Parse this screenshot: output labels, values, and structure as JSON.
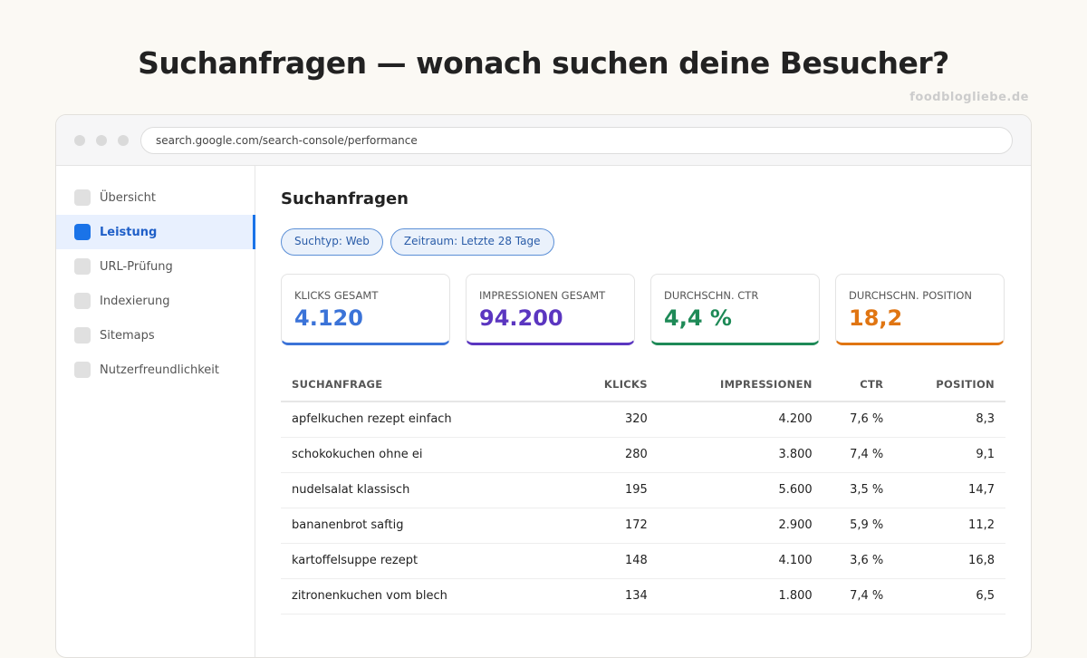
{
  "headline": "Suchanfragen — wonach suchen deine Besucher?",
  "url": "search.google.com/search-console/performance",
  "sidebar": {
    "items": [
      {
        "label": "Übersicht"
      },
      {
        "label": "Leistung"
      },
      {
        "label": "URL-Prüfung"
      },
      {
        "label": "Indexierung"
      },
      {
        "label": "Sitemaps"
      },
      {
        "label": "Nutzerfreundlichkeit"
      }
    ]
  },
  "main": {
    "title": "Suchanfragen",
    "chips": [
      "Suchtyp: Web",
      "Zeitraum: Letzte 28 Tage"
    ],
    "cards": [
      {
        "label": "KLICKS GESAMT",
        "value": "4.120",
        "color": "#3b73d8"
      },
      {
        "label": "IMPRESSIONEN GESAMT",
        "value": "94.200",
        "color": "#5b36c0"
      },
      {
        "label": "DURCHSCHN. CTR",
        "value": "4,4 %",
        "color": "#1e8a57"
      },
      {
        "label": "DURCHSCHN. POSITION",
        "value": "18,2",
        "color": "#e07512"
      }
    ],
    "table": {
      "headers": [
        "SUCHANFRAGE",
        "KLICKS",
        "IMPRESSIONEN",
        "CTR",
        "POSITION"
      ],
      "rows": [
        [
          "apfelkuchen rezept einfach",
          "320",
          "4.200",
          "7,6 %",
          "8,3"
        ],
        [
          "schokokuchen ohne ei",
          "280",
          "3.800",
          "7,4 %",
          "9,1"
        ],
        [
          "nudelsalat klassisch",
          "195",
          "5.600",
          "3,5 %",
          "14,7"
        ],
        [
          "bananenbrot saftig",
          "172",
          "2.900",
          "5,9 %",
          "11,2"
        ],
        [
          "kartoffelsuppe rezept",
          "148",
          "4.100",
          "3,6 %",
          "16,8"
        ],
        [
          "zitronenkuchen vom blech",
          "134",
          "1.800",
          "7,4 %",
          "6,5"
        ]
      ]
    }
  },
  "watermark": "foodblogliebe.de"
}
